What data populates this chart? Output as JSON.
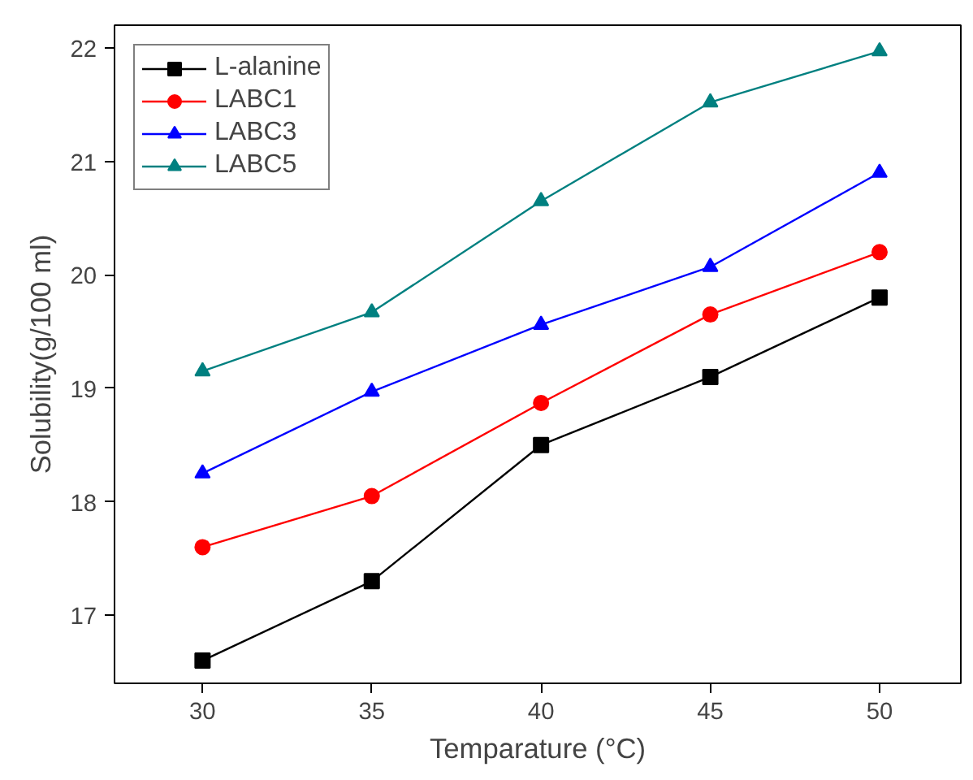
{
  "chart_data": {
    "type": "line",
    "xlabel": "Temparature (°C)",
    "ylabel": "Solubility(g/100 ml)",
    "x": [
      30,
      35,
      40,
      45,
      50
    ],
    "series": [
      {
        "name": "L-alanine",
        "color": "#000000",
        "marker": "square",
        "values": [
          16.6,
          17.3,
          18.5,
          19.1,
          19.8
        ]
      },
      {
        "name": "LABC1",
        "color": "#ff0000",
        "marker": "circle",
        "values": [
          17.6,
          18.05,
          18.87,
          19.65,
          20.2
        ]
      },
      {
        "name": "LABC3",
        "color": "#0000ff",
        "marker": "triangle",
        "values": [
          18.25,
          18.97,
          19.56,
          20.07,
          20.9
        ]
      },
      {
        "name": "LABC5",
        "color": "#008080",
        "marker": "triangle",
        "values": [
          19.15,
          19.67,
          20.65,
          21.52,
          21.97
        ]
      }
    ],
    "xlim": [
      27.4,
      52.4
    ],
    "ylim": [
      16.4,
      22.2
    ],
    "xticks": [
      30,
      35,
      40,
      45,
      50
    ],
    "yticks": [
      17,
      18,
      19,
      20,
      21,
      22
    ],
    "grid": false,
    "legend": "top left",
    "line_style": "solid"
  }
}
